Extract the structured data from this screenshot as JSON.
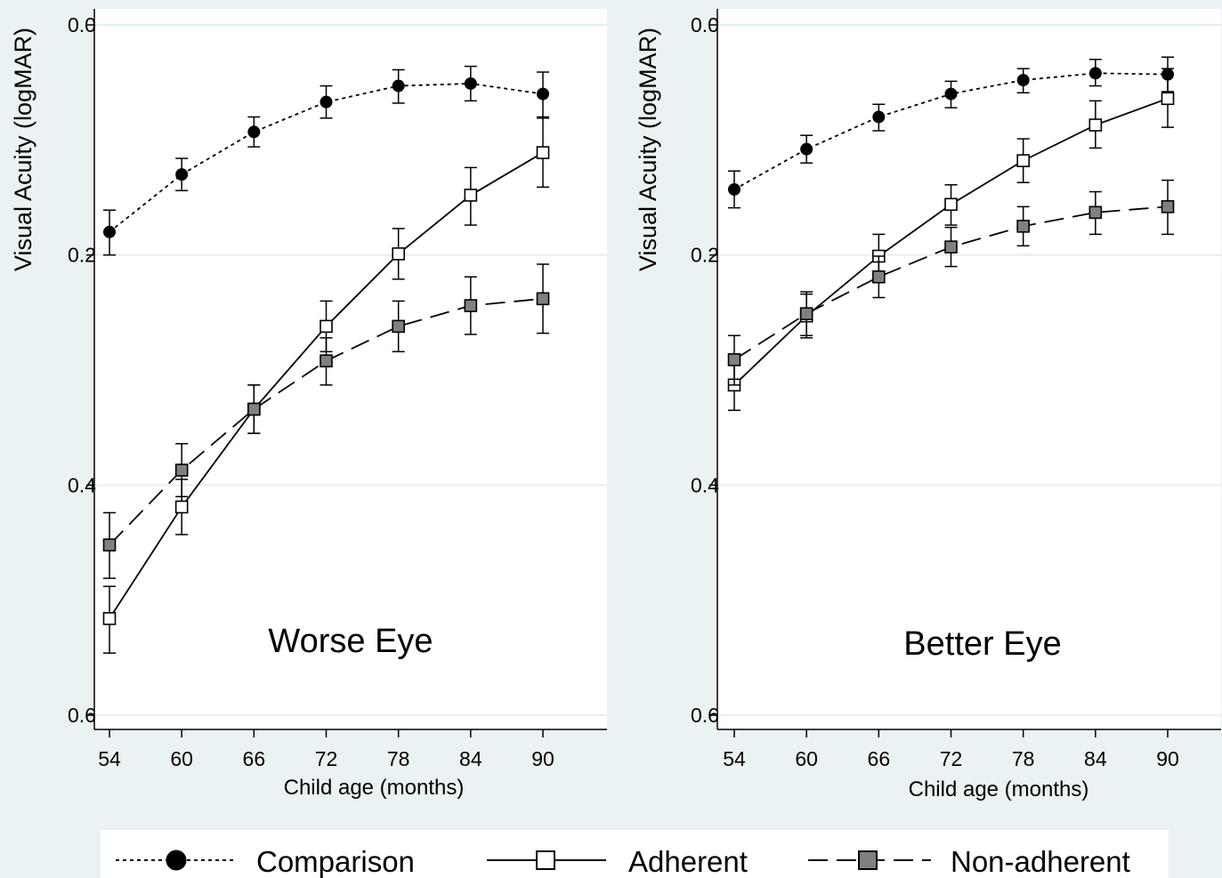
{
  "legend": {
    "items": [
      {
        "label": "Comparison",
        "style": "dotted",
        "marker": "circle",
        "fill": "#000000"
      },
      {
        "label": "Adherent",
        "style": "solid",
        "marker": "square",
        "fill": "#ffffff"
      },
      {
        "label": "Non-adherent",
        "style": "dashed",
        "marker": "square",
        "fill": "#808080"
      }
    ]
  },
  "chart_data": [
    {
      "type": "line",
      "annotation": "Worse Eye",
      "xlabel": "Child age (months)",
      "ylabel": "Visual Acuity (logMAR)",
      "x": [
        54,
        60,
        66,
        72,
        78,
        84,
        90
      ],
      "x_ticks": [
        "54",
        "60",
        "66",
        "72",
        "78",
        "84",
        "90"
      ],
      "y_ticks": [
        "0.0",
        "0.2",
        "0.4",
        "0.6"
      ],
      "ylim": [
        0.0,
        0.6
      ],
      "y_reversed": true,
      "grid": true,
      "series": [
        {
          "name": "Comparison",
          "values": [
            0.18,
            0.13,
            0.093,
            0.067,
            0.053,
            0.051,
            0.06
          ],
          "lower": [
            0.161,
            0.116,
            0.08,
            0.053,
            0.039,
            0.036,
            0.041
          ],
          "upper": [
            0.2,
            0.144,
            0.106,
            0.081,
            0.068,
            0.066,
            0.08
          ]
        },
        {
          "name": "Adherent",
          "values": [
            0.516,
            0.419,
            0.334,
            0.262,
            0.199,
            0.148,
            0.111
          ],
          "lower": [
            0.488,
            0.395,
            0.313,
            0.24,
            0.177,
            0.124,
            0.081
          ],
          "upper": [
            0.546,
            0.443,
            0.355,
            0.284,
            0.221,
            0.174,
            0.141
          ]
        },
        {
          "name": "Non-adherent",
          "values": [
            0.452,
            0.387,
            0.334,
            0.292,
            0.262,
            0.244,
            0.238
          ],
          "lower": [
            0.424,
            0.364,
            0.313,
            0.272,
            0.24,
            0.219,
            0.208
          ],
          "upper": [
            0.481,
            0.41,
            0.355,
            0.313,
            0.284,
            0.269,
            0.268
          ]
        }
      ]
    },
    {
      "type": "line",
      "annotation": "Better Eye",
      "xlabel": "Child age (months)",
      "ylabel": "Visual Acuity (logMAR)",
      "x": [
        54,
        60,
        66,
        72,
        78,
        84,
        90
      ],
      "x_ticks": [
        "54",
        "60",
        "66",
        "72",
        "78",
        "84",
        "90"
      ],
      "y_ticks": [
        "0.0",
        "0.2",
        "0.4",
        "0.6"
      ],
      "ylim": [
        0.0,
        0.6
      ],
      "y_reversed": true,
      "grid": true,
      "series": [
        {
          "name": "Comparison",
          "values": [
            0.143,
            0.108,
            0.08,
            0.06,
            0.048,
            0.042,
            0.043
          ],
          "lower": [
            0.127,
            0.096,
            0.069,
            0.049,
            0.038,
            0.03,
            0.028
          ],
          "upper": [
            0.159,
            0.12,
            0.092,
            0.072,
            0.059,
            0.053,
            0.058
          ]
        },
        {
          "name": "Adherent",
          "values": [
            0.313,
            0.253,
            0.201,
            0.156,
            0.118,
            0.087,
            0.064
          ],
          "lower": [
            0.292,
            0.234,
            0.182,
            0.139,
            0.099,
            0.066,
            0.038
          ],
          "upper": [
            0.335,
            0.272,
            0.221,
            0.174,
            0.137,
            0.107,
            0.089
          ]
        },
        {
          "name": "Non-adherent",
          "values": [
            0.291,
            0.251,
            0.219,
            0.193,
            0.175,
            0.163,
            0.158
          ],
          "lower": [
            0.27,
            0.232,
            0.201,
            0.176,
            0.158,
            0.145,
            0.135
          ],
          "upper": [
            0.313,
            0.27,
            0.237,
            0.21,
            0.192,
            0.182,
            0.182
          ]
        }
      ]
    }
  ]
}
